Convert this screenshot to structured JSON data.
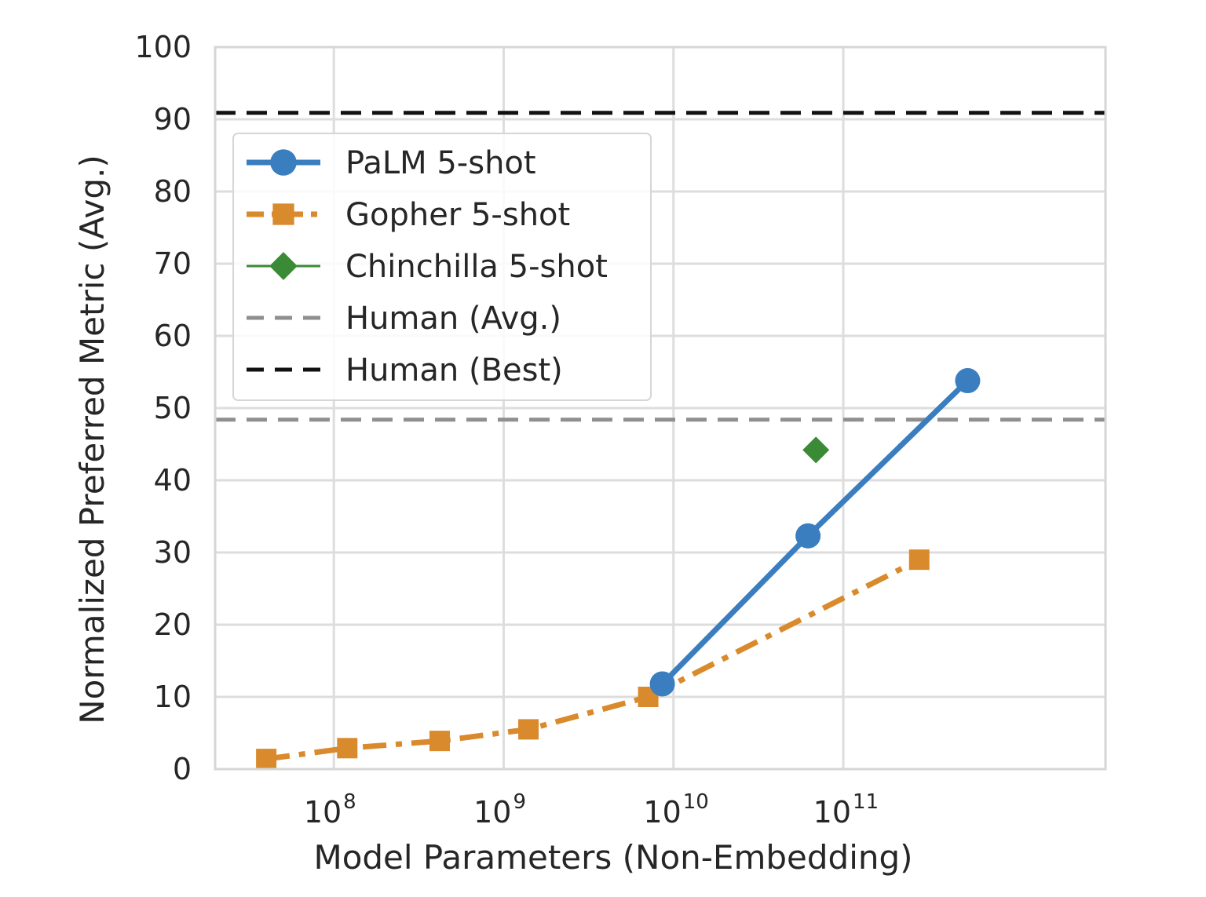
{
  "chart_data": {
    "type": "line",
    "xlabel": "Model Parameters (Non-Embedding)",
    "ylabel": "Normalized Preferred Metric (Avg.)",
    "xscale": "log",
    "xlim": [
      20000000.0,
      3500000000000.0
    ],
    "ylim": [
      0,
      100
    ],
    "yticks": [
      0,
      10,
      20,
      30,
      40,
      50,
      60,
      70,
      80,
      90,
      100
    ],
    "xticks": [
      {
        "base": "10",
        "exp": "8",
        "value": 100000000.0
      },
      {
        "base": "10",
        "exp": "9",
        "value": 1000000000.0
      },
      {
        "base": "10",
        "exp": "10",
        "value": 10000000000.0
      },
      {
        "base": "10",
        "exp": "11",
        "value": 100000000000.0
      }
    ],
    "grid": true,
    "legend_position": "upper-left",
    "series": [
      {
        "name": "PaLM 5-shot",
        "color": "#3a7ebf",
        "marker": "circle",
        "line_style": "solid",
        "points": [
          {
            "x": 8600000000.0,
            "y": 11.8
          },
          {
            "x": 62000000000.0,
            "y": 32.3
          },
          {
            "x": 540000000000.0,
            "y": 53.8
          }
        ]
      },
      {
        "name": "Gopher 5-shot",
        "color": "#d98a2c",
        "marker": "square",
        "line_style": "dashdot",
        "points": [
          {
            "x": 40000000.0,
            "y": 1.4
          },
          {
            "x": 120000000.0,
            "y": 2.9
          },
          {
            "x": 420000000.0,
            "y": 3.9
          },
          {
            "x": 1400000000.0,
            "y": 5.5
          },
          {
            "x": 7100000000.0,
            "y": 10.0
          },
          {
            "x": 280000000000.0,
            "y": 29.0
          }
        ]
      },
      {
        "name": "Chinchilla 5-shot",
        "color": "#3b8a35",
        "marker": "diamond",
        "line_style": "solid",
        "points": [
          {
            "x": 69000000000.0,
            "y": 44.2
          }
        ]
      }
    ],
    "reference_lines": [
      {
        "name": "Human (Avg.)",
        "y": 48.4,
        "color": "#8f8f8f",
        "line_style": "dashed"
      },
      {
        "name": "Human (Best)",
        "y": 90.9,
        "color": "#111111",
        "line_style": "dashed"
      }
    ],
    "legend": [
      "PaLM 5-shot",
      "Gopher 5-shot",
      "Chinchilla 5-shot",
      "Human (Avg.)",
      "Human (Best)"
    ]
  }
}
